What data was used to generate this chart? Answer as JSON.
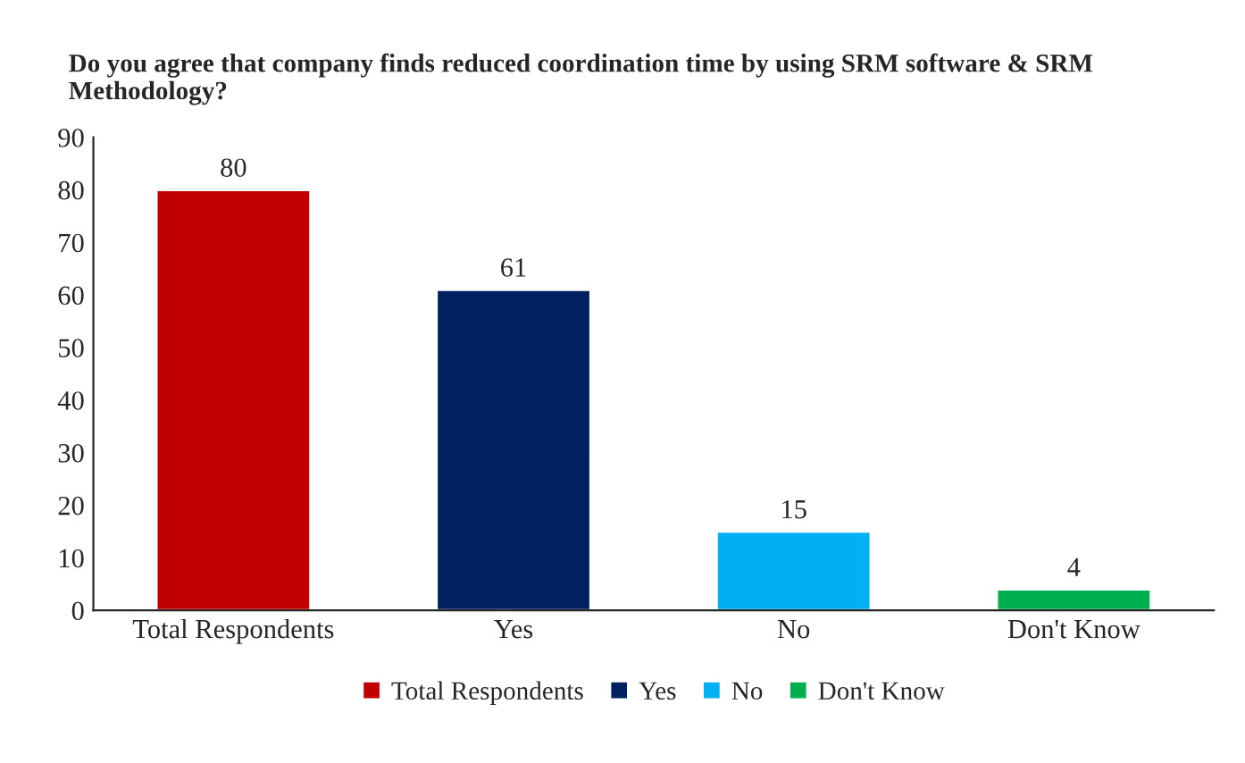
{
  "chart_data": {
    "type": "bar",
    "title": "Do you agree that company finds reduced coordination time by using SRM software & SRM Methodology?",
    "categories": [
      "Total Respondents",
      "Yes",
      "No",
      "Don't Know"
    ],
    "series": [
      {
        "name": "Total Respondents",
        "color": "#c00000",
        "values": [
          80,
          null,
          null,
          null
        ]
      },
      {
        "name": "Yes",
        "color": "#002060",
        "values": [
          null,
          61,
          null,
          null
        ]
      },
      {
        "name": "No",
        "color": "#00b0f0",
        "values": [
          null,
          null,
          15,
          null
        ]
      },
      {
        "name": "Don't Know",
        "color": "#00b050",
        "values": [
          null,
          null,
          null,
          4
        ]
      }
    ],
    "ylim": [
      0,
      90
    ],
    "yticks": [
      0,
      10,
      20,
      30,
      40,
      50,
      60,
      70,
      80,
      90
    ],
    "data_labels": true,
    "legend": "bottom",
    "grid": false
  }
}
